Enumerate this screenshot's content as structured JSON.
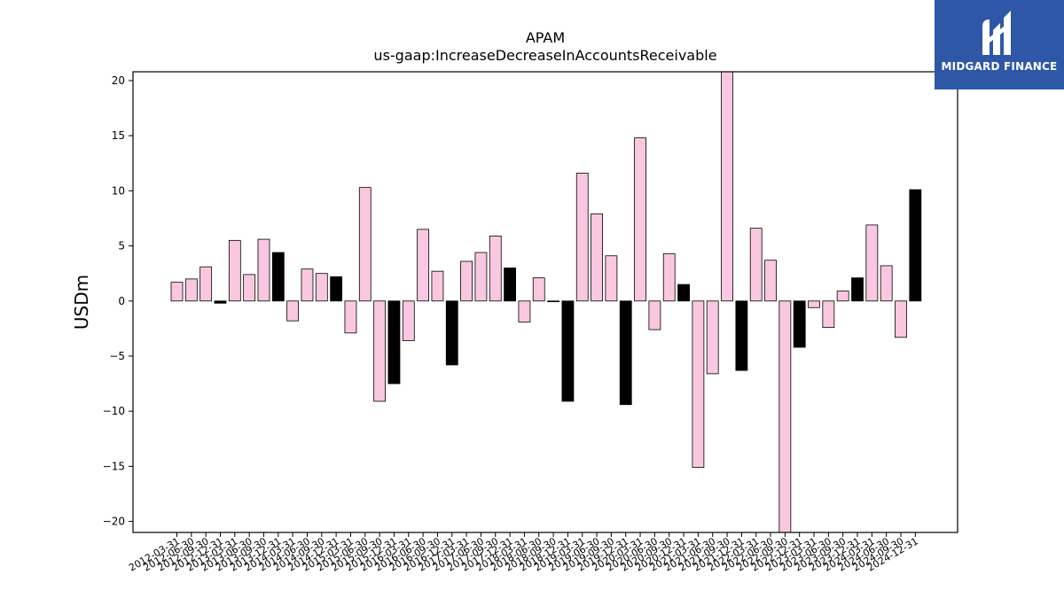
{
  "brand": {
    "name": "MIDGARD FINANCE"
  },
  "chart_data": {
    "type": "bar",
    "title": "APAM",
    "subtitle": "us-gaap:IncreaseDecreaseInAccountsReceivable",
    "xlabel": "",
    "ylabel": "USDm",
    "ylim": [
      -21,
      20.8
    ],
    "yticks": [
      20,
      15,
      10,
      5,
      0,
      -5,
      -10,
      -15,
      -20
    ],
    "ytick_labels": [
      "20",
      "15",
      "10",
      "5",
      "0",
      "−5",
      "−10",
      "−15",
      "−20"
    ],
    "grid": false,
    "colors": {
      "quarterly": "#f9c8e0",
      "annual": "#000000",
      "edge": "#000000"
    },
    "categories": [
      "2012-03-31",
      "2012-06-30",
      "2012-09-30",
      "2012-12-31",
      "2013-03-31",
      "2013-06-30",
      "2013-09-30",
      "2013-12-31",
      "2014-03-31",
      "2014-06-30",
      "2014-09-30",
      "2014-12-31",
      "2015-03-31",
      "2015-06-30",
      "2015-09-30",
      "2015-12-31",
      "2016-03-31",
      "2016-06-30",
      "2016-09-30",
      "2016-12-31",
      "2017-03-31",
      "2017-06-30",
      "2017-09-30",
      "2017-12-31",
      "2018-03-31",
      "2018-06-30",
      "2018-09-30",
      "2018-12-31",
      "2019-03-31",
      "2019-06-30",
      "2019-09-30",
      "2019-12-31",
      "2020-03-31",
      "2020-06-30",
      "2020-09-30",
      "2020-12-31",
      "2021-03-31",
      "2021-06-30",
      "2021-09-30",
      "2021-12-31",
      "2022-03-31",
      "2022-06-30",
      "2022-09-30",
      "2022-12-31",
      "2023-03-31",
      "2023-06-30",
      "2023-09-30",
      "2023-12-31",
      "2024-03-31",
      "2024-06-30",
      "2024-09-30",
      "2024-12-31"
    ],
    "values": [
      1.7,
      2.0,
      3.1,
      -0.2,
      5.5,
      2.4,
      5.6,
      4.4,
      -1.8,
      2.9,
      2.5,
      2.2,
      -2.9,
      10.3,
      -9.1,
      -7.5,
      -3.6,
      6.5,
      2.7,
      -5.8,
      3.6,
      4.4,
      5.9,
      3.0,
      -1.9,
      2.1,
      0.0,
      -9.1,
      11.6,
      7.9,
      4.1,
      -9.4,
      14.8,
      -2.6,
      4.3,
      1.5,
      -15.1,
      -6.6,
      20.8,
      -6.3,
      6.6,
      3.7,
      -21.0,
      -4.2,
      -0.6,
      -2.4,
      0.9,
      2.1,
      6.9,
      3.2,
      -3.3,
      10.1
    ],
    "annual": [
      false,
      false,
      false,
      true,
      false,
      false,
      false,
      true,
      false,
      false,
      false,
      true,
      false,
      false,
      false,
      true,
      false,
      false,
      false,
      true,
      false,
      false,
      false,
      true,
      false,
      false,
      false,
      true,
      false,
      false,
      false,
      true,
      false,
      false,
      false,
      true,
      false,
      false,
      false,
      true,
      false,
      false,
      false,
      true,
      false,
      false,
      false,
      true,
      false,
      false,
      false,
      true
    ]
  }
}
